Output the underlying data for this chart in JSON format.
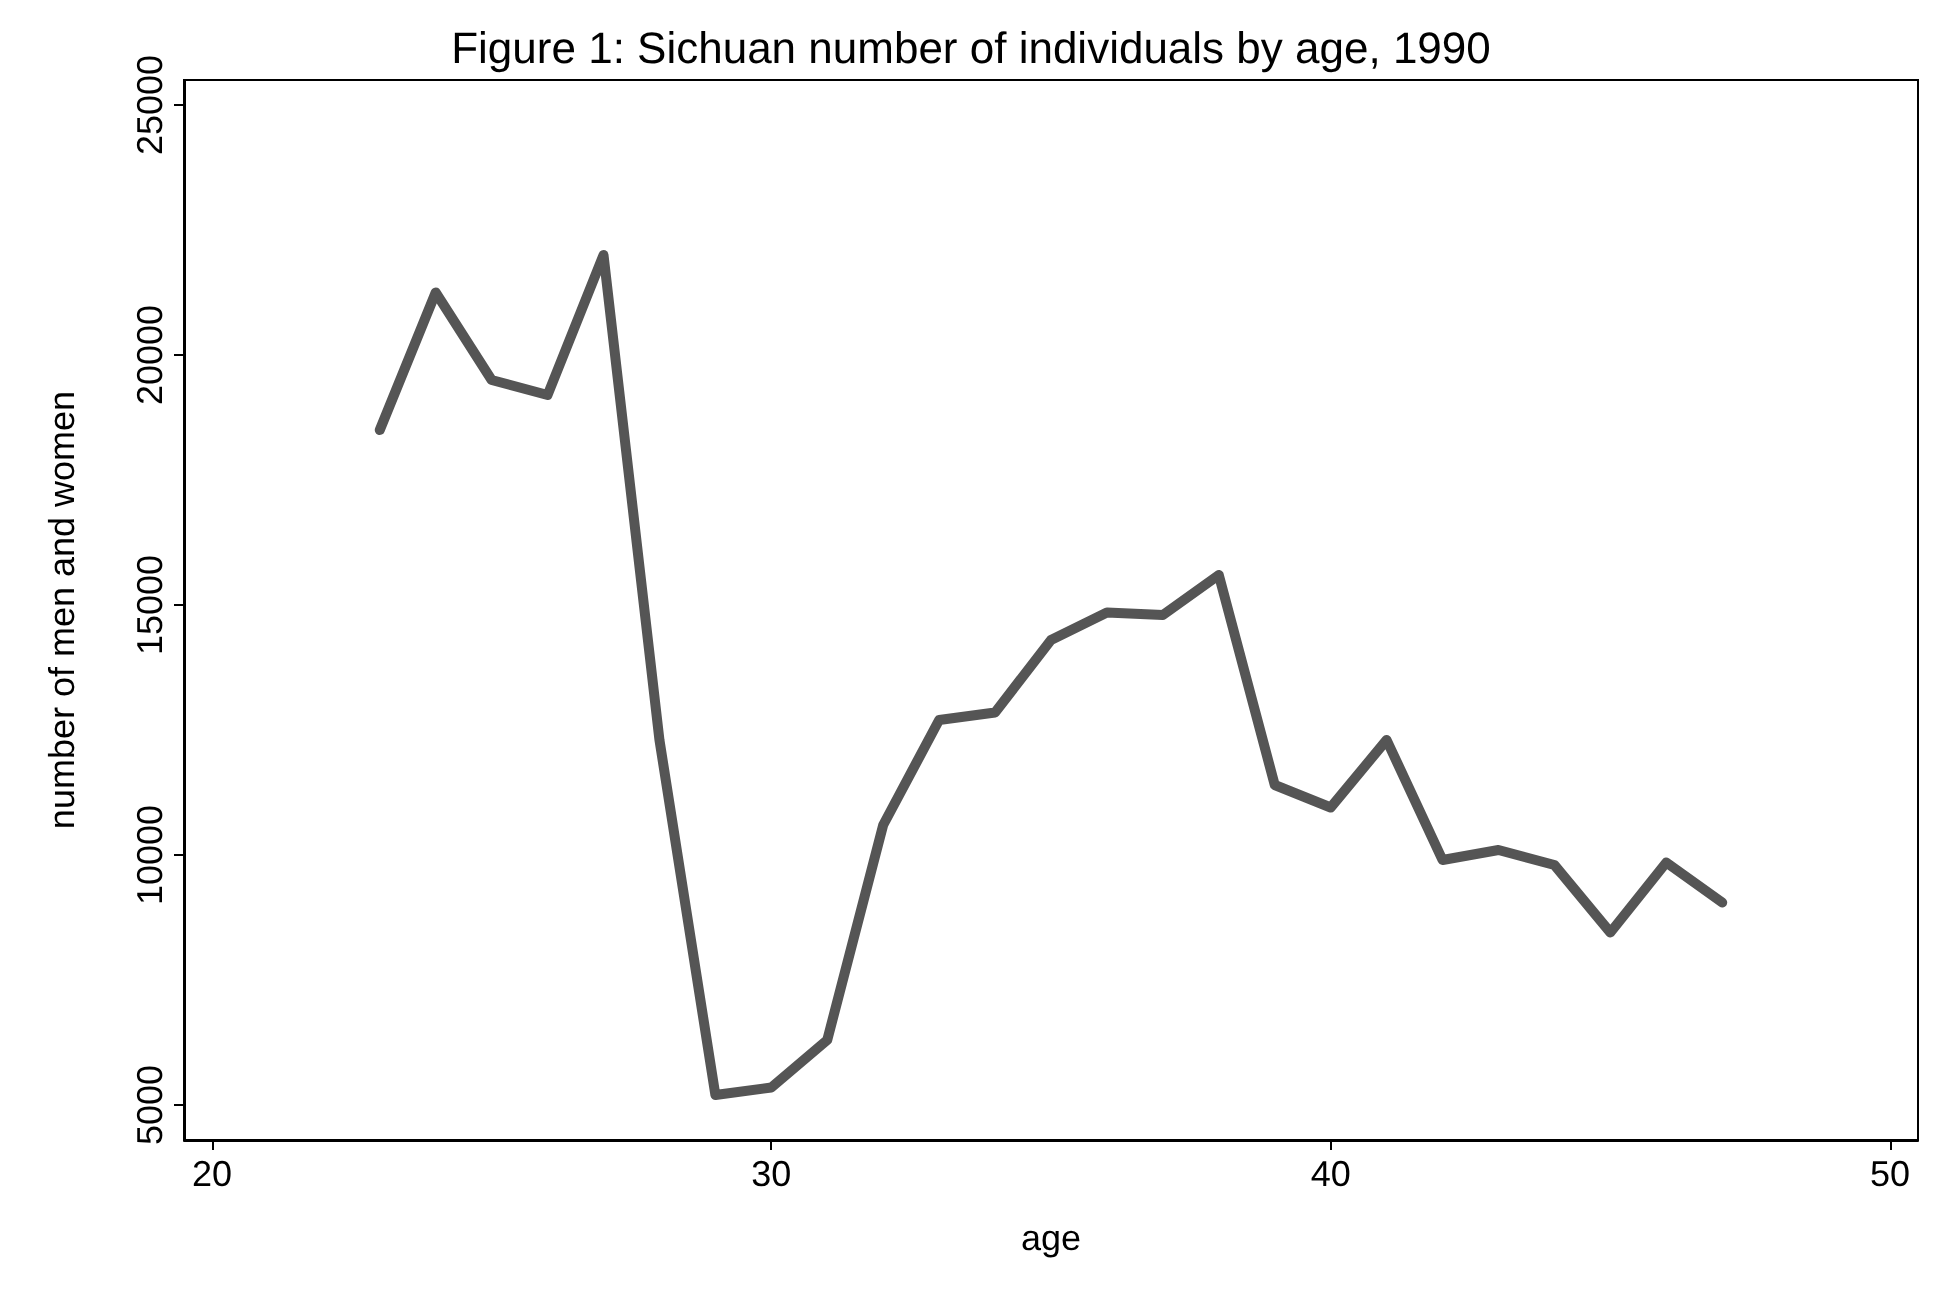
{
  "chart_data": {
    "type": "line",
    "title": "Figure 1: Sichuan number of individuals by age, 1990",
    "xlabel": "age",
    "ylabel": "number of men and women",
    "x": [
      23,
      24,
      25,
      26,
      27,
      28,
      29,
      30,
      31,
      32,
      33,
      34,
      35,
      36,
      37,
      38,
      39,
      40,
      41,
      42,
      43,
      44,
      45,
      46,
      47
    ],
    "series": [
      {
        "color": "#555555",
        "values": [
          18500,
          21250,
          19500,
          19200,
          22000,
          12300,
          5200,
          5350,
          6300,
          10600,
          12700,
          12850,
          14300,
          14850,
          14800,
          15600,
          11400,
          10950,
          12300,
          9900,
          10100,
          9800,
          8450,
          9850,
          9050
        ]
      }
    ],
    "xlim": [
      19.5,
      50.5
    ],
    "xticks": [
      20,
      30,
      40,
      50
    ],
    "ylim": [
      4300,
      25500
    ],
    "yticks": [
      5000,
      10000,
      15000,
      20000,
      25000
    ],
    "grid": false,
    "marker": "none",
    "line_style": "solid"
  }
}
